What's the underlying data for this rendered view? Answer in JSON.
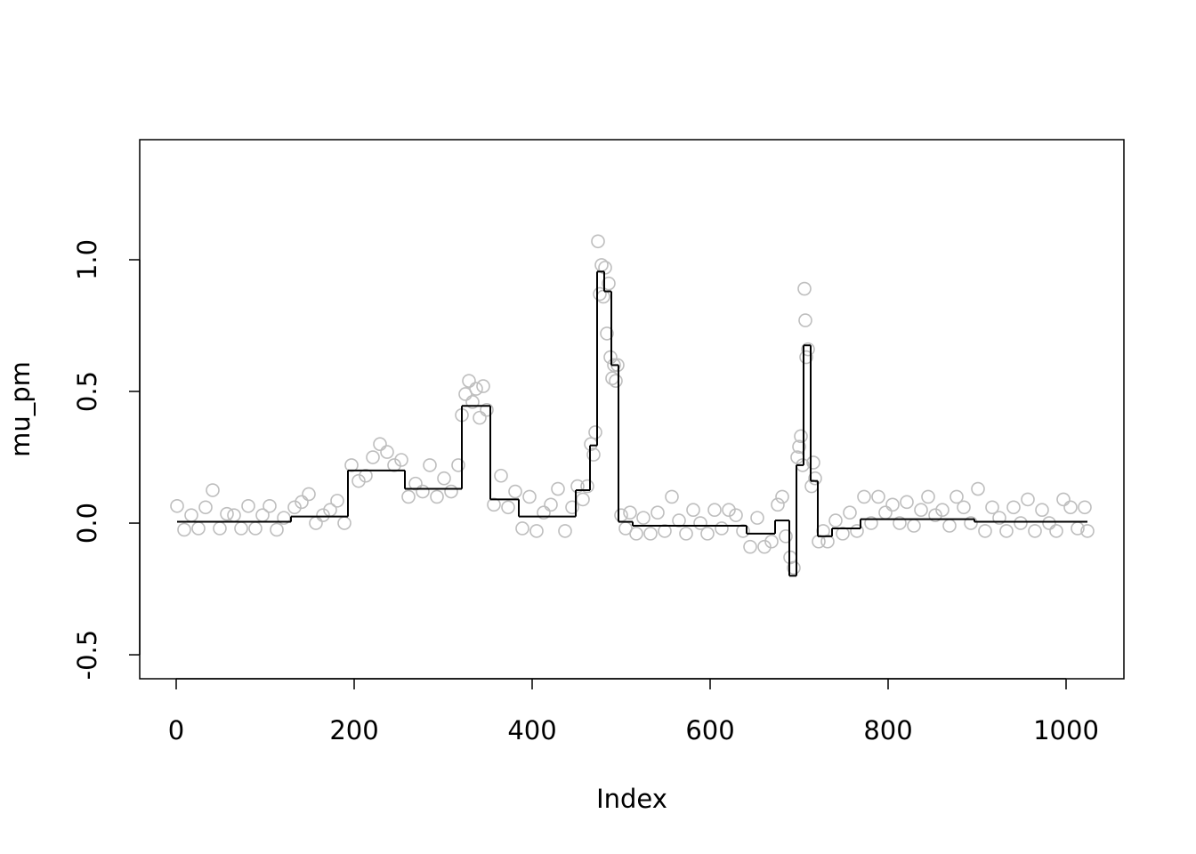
{
  "chart_data": {
    "type": "scatter-step",
    "x_label": "Index",
    "y_label": "mu_pm",
    "xlim": [
      -41,
      1065
    ],
    "ylim": [
      -0.591,
      1.456
    ],
    "xticks": [
      0,
      200,
      400,
      600,
      800,
      1000
    ],
    "yticks": [
      -0.5,
      {
        "value": 0,
        "label": "0.0"
      },
      0.5,
      {
        "value": 1,
        "label": "1.0"
      }
    ],
    "series": [
      {
        "name": "mu_pm",
        "color": "#bebebe",
        "x": [
          1,
          9,
          17,
          25,
          33,
          41,
          49,
          57,
          65,
          73,
          81,
          89,
          97,
          105,
          113,
          121,
          133,
          141,
          149,
          157,
          165,
          173,
          181,
          189,
          197,
          205,
          213,
          221,
          229,
          237,
          245,
          253,
          261,
          269,
          277,
          285,
          293,
          301,
          309,
          317,
          321,
          325,
          329,
          333,
          337,
          341,
          345,
          349,
          357,
          365,
          373,
          381,
          389,
          397,
          405,
          413,
          421,
          429,
          437,
          445,
          451,
          457,
          462,
          466,
          469,
          471,
          474,
          476,
          478,
          480,
          482,
          484,
          486,
          488,
          490,
          492,
          494,
          496,
          500,
          505,
          510,
          517,
          525,
          533,
          541,
          549,
          557,
          565,
          573,
          581,
          589,
          597,
          605,
          613,
          621,
          629,
          637,
          645,
          653,
          661,
          669,
          676,
          681,
          685,
          690,
          694,
          698,
          700,
          702,
          704,
          706,
          707,
          708,
          710,
          714,
          716,
          718,
          722,
          727,
          732,
          741,
          749,
          757,
          765,
          773,
          781,
          789,
          797,
          805,
          813,
          821,
          829,
          837,
          845,
          853,
          861,
          869,
          877,
          885,
          893,
          901,
          909,
          917,
          925,
          933,
          941,
          949,
          957,
          965,
          973,
          981,
          989,
          997,
          1005,
          1013,
          1021,
          1024
        ],
        "values": [
          0.065,
          -0.025,
          0.03,
          -0.02,
          0.06,
          0.125,
          -0.02,
          0.035,
          0.03,
          -0.02,
          0.065,
          -0.02,
          0.03,
          0.065,
          -0.025,
          0.02,
          0.06,
          0.08,
          0.11,
          0.0,
          0.03,
          0.05,
          0.085,
          0.0,
          0.22,
          0.16,
          0.18,
          0.25,
          0.3,
          0.27,
          0.22,
          0.24,
          0.1,
          0.15,
          0.12,
          0.22,
          0.1,
          0.17,
          0.12,
          0.22,
          0.41,
          0.49,
          0.54,
          0.46,
          0.51,
          0.4,
          0.52,
          0.43,
          0.07,
          0.18,
          0.06,
          0.12,
          -0.02,
          0.1,
          -0.03,
          0.04,
          0.07,
          0.13,
          -0.03,
          0.06,
          0.14,
          0.09,
          0.14,
          0.3,
          0.26,
          0.345,
          1.07,
          0.87,
          0.98,
          0.86,
          0.97,
          0.72,
          0.91,
          0.63,
          0.55,
          0.6,
          0.54,
          0.6,
          0.03,
          -0.02,
          0.04,
          -0.04,
          0.02,
          -0.04,
          0.04,
          -0.03,
          0.1,
          0.01,
          -0.04,
          0.05,
          0.0,
          -0.04,
          0.05,
          -0.02,
          0.05,
          0.03,
          -0.03,
          -0.09,
          0.02,
          -0.09,
          -0.07,
          0.07,
          0.1,
          -0.05,
          -0.13,
          -0.17,
          0.25,
          0.29,
          0.33,
          0.22,
          0.89,
          0.77,
          0.63,
          0.66,
          0.14,
          0.23,
          0.17,
          -0.07,
          -0.03,
          -0.07,
          0.01,
          -0.04,
          0.04,
          -0.03,
          0.1,
          0.0,
          0.1,
          0.04,
          0.07,
          0.0,
          0.08,
          -0.01,
          0.05,
          0.1,
          0.03,
          0.05,
          -0.01,
          0.1,
          0.06,
          0.0,
          0.13,
          -0.03,
          0.06,
          0.02,
          -0.03,
          0.06,
          0.0,
          0.09,
          -0.03,
          0.05,
          0.0,
          -0.03,
          0.09,
          0.06,
          -0.02,
          0.06,
          -0.03
        ]
      },
      {
        "type": "step",
        "color": "#000000",
        "x": [
          1,
          129,
          193,
          257,
          321,
          353,
          385,
          449,
          465,
          473,
          481,
          489,
          497,
          513,
          641,
          673,
          689,
          697,
          705,
          713,
          721,
          737,
          769,
          897,
          1024
        ],
        "values": [
          0.005,
          0.025,
          0.2,
          0.13,
          0.445,
          0.09,
          0.025,
          0.125,
          0.295,
          0.955,
          0.88,
          0.6,
          0.005,
          -0.01,
          -0.04,
          0.01,
          -0.2,
          0.22,
          0.675,
          0.16,
          -0.05,
          -0.02,
          0.015,
          0.005,
          0.005
        ]
      }
    ]
  }
}
